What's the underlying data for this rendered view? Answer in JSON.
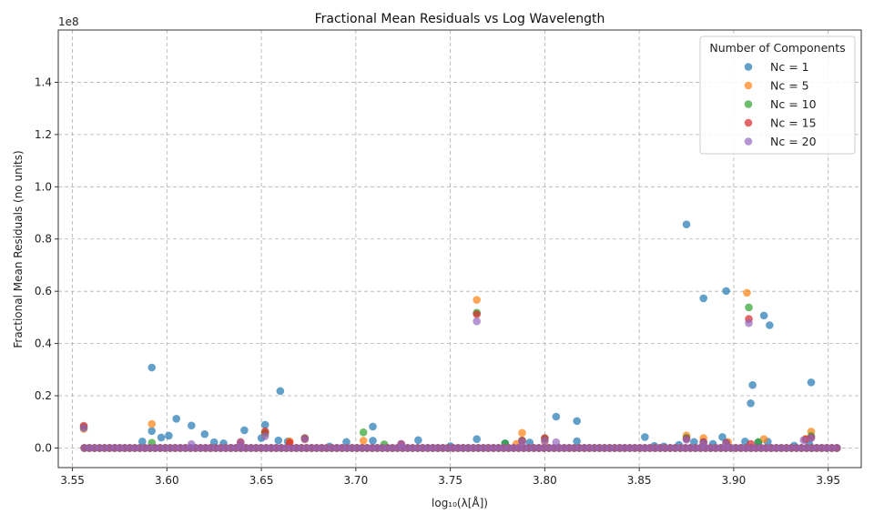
{
  "chart_data": {
    "type": "scatter",
    "title": "Fractional Mean Residuals vs Log Wavelength",
    "xlabel": "log₁₀(λ[Å])",
    "ylabel": "Fractional Mean Residuals (no units)",
    "y_scale_label": "1e8",
    "xlim": [
      3.5425,
      3.9675
    ],
    "ylim": [
      -7500000,
      160000000
    ],
    "x_ticks": [
      3.55,
      3.6,
      3.65,
      3.7,
      3.75,
      3.8,
      3.85,
      3.9,
      3.95
    ],
    "x_tick_labels": [
      "3.55",
      "3.60",
      "3.65",
      "3.70",
      "3.75",
      "3.80",
      "3.85",
      "3.90",
      "3.95"
    ],
    "y_ticks": [
      0,
      20000000,
      40000000,
      60000000,
      80000000,
      100000000,
      120000000,
      140000000
    ],
    "y_tick_labels": [
      "0.0",
      "0.2",
      "0.4",
      "0.6",
      "0.8",
      "1.0",
      "1.2",
      "1.4"
    ],
    "grid": true,
    "legend_title": "Number of Components",
    "legend_position": "top-right",
    "baseline_range": [
      3.5563,
      3.9546
    ],
    "series": [
      {
        "name": "Nc = 1",
        "color": "#1f77b4",
        "points": [
          [
            3.592,
            30800000
          ],
          [
            3.66,
            21800000
          ],
          [
            3.875,
            85600000
          ],
          [
            3.884,
            57300000
          ],
          [
            3.896,
            60100000
          ],
          [
            3.916,
            50700000
          ],
          [
            3.919,
            47000000
          ],
          [
            3.941,
            25100000
          ],
          [
            3.91,
            24100000
          ],
          [
            3.909,
            17100000
          ],
          [
            3.806,
            12000000
          ],
          [
            3.817,
            10300000
          ],
          [
            3.605,
            11200000
          ],
          [
            3.613,
            8600000
          ],
          [
            3.652,
            8900000
          ],
          [
            3.709,
            8200000
          ],
          [
            3.641,
            6800000
          ],
          [
            3.592,
            6500000
          ],
          [
            3.62,
            5300000
          ],
          [
            3.764,
            3400000
          ],
          [
            3.853,
            4200000
          ],
          [
            3.894,
            4200000
          ],
          [
            3.601,
            4700000
          ],
          [
            3.597,
            4000000
          ],
          [
            3.587,
            2500000
          ],
          [
            3.625,
            2200000
          ],
          [
            3.63,
            1800000
          ],
          [
            3.65,
            3800000
          ],
          [
            3.659,
            2900000
          ],
          [
            3.664,
            2500000
          ],
          [
            3.695,
            2300000
          ],
          [
            3.709,
            2800000
          ],
          [
            3.733,
            3000000
          ],
          [
            3.779,
            1800000
          ],
          [
            3.792,
            2100000
          ],
          [
            3.817,
            2600000
          ],
          [
            3.871,
            1200000
          ],
          [
            3.879,
            2300000
          ],
          [
            3.889,
            1600000
          ],
          [
            3.906,
            2500000
          ],
          [
            3.913,
            2100000
          ],
          [
            3.918,
            2400000
          ],
          [
            3.932,
            900000
          ],
          [
            3.858,
            800000
          ],
          [
            3.863,
            600000
          ],
          [
            3.686,
            600000
          ],
          [
            3.75,
            700000
          ],
          [
            3.94,
            1500000
          ]
        ]
      },
      {
        "name": "Nc = 5",
        "color": "#ff7f0e",
        "points": [
          [
            3.764,
            56700000
          ],
          [
            3.907,
            59400000
          ],
          [
            3.592,
            9200000
          ],
          [
            3.788,
            5800000
          ],
          [
            3.941,
            6300000
          ],
          [
            3.652,
            5500000
          ],
          [
            3.875,
            4800000
          ],
          [
            3.884,
            3800000
          ],
          [
            3.916,
            3400000
          ],
          [
            3.704,
            2800000
          ],
          [
            3.556,
            7300000
          ],
          [
            3.665,
            2600000
          ],
          [
            3.673,
            3300000
          ],
          [
            3.897,
            2300000
          ],
          [
            3.938,
            3500000
          ],
          [
            3.8,
            2500000
          ],
          [
            3.785,
            1600000
          ],
          [
            3.724,
            1400000
          ],
          [
            3.639,
            1800000
          ]
        ]
      },
      {
        "name": "Nc = 10",
        "color": "#2ca02c",
        "points": [
          [
            3.764,
            51800000
          ],
          [
            3.908,
            53800000
          ],
          [
            3.704,
            6000000
          ],
          [
            3.941,
            4600000
          ],
          [
            3.556,
            8000000
          ],
          [
            3.673,
            3800000
          ],
          [
            3.652,
            5800000
          ],
          [
            3.875,
            3900000
          ],
          [
            3.715,
            1400000
          ],
          [
            3.8,
            3600000
          ],
          [
            3.788,
            2900000
          ],
          [
            3.884,
            2200000
          ],
          [
            3.896,
            2000000
          ],
          [
            3.913,
            2300000
          ],
          [
            3.779,
            1700000
          ],
          [
            3.592,
            2000000
          ]
        ]
      },
      {
        "name": "Nc = 15",
        "color": "#d62728",
        "points": [
          [
            3.764,
            51200000
          ],
          [
            3.908,
            49400000
          ],
          [
            3.556,
            8500000
          ],
          [
            3.652,
            6400000
          ],
          [
            3.941,
            4000000
          ],
          [
            3.673,
            3700000
          ],
          [
            3.875,
            3500000
          ],
          [
            3.8,
            3800000
          ],
          [
            3.788,
            2800000
          ],
          [
            3.724,
            1500000
          ],
          [
            3.639,
            2300000
          ],
          [
            3.884,
            2300000
          ],
          [
            3.896,
            2000000
          ],
          [
            3.909,
            1600000
          ],
          [
            3.665,
            2000000
          ],
          [
            3.938,
            3300000
          ]
        ]
      },
      {
        "name": "Nc = 20",
        "color": "#9467bd",
        "points": [
          [
            3.764,
            48500000
          ],
          [
            3.908,
            47800000
          ],
          [
            3.556,
            7600000
          ],
          [
            3.652,
            4500000
          ],
          [
            3.941,
            3800000
          ],
          [
            3.673,
            3400000
          ],
          [
            3.875,
            3200000
          ],
          [
            3.806,
            2200000
          ],
          [
            3.8,
            2700000
          ],
          [
            3.788,
            2300000
          ],
          [
            3.639,
            2000000
          ],
          [
            3.884,
            1900000
          ],
          [
            3.896,
            1800000
          ],
          [
            3.937,
            3000000
          ],
          [
            3.613,
            1500000
          ],
          [
            3.724,
            1600000
          ]
        ]
      }
    ]
  }
}
